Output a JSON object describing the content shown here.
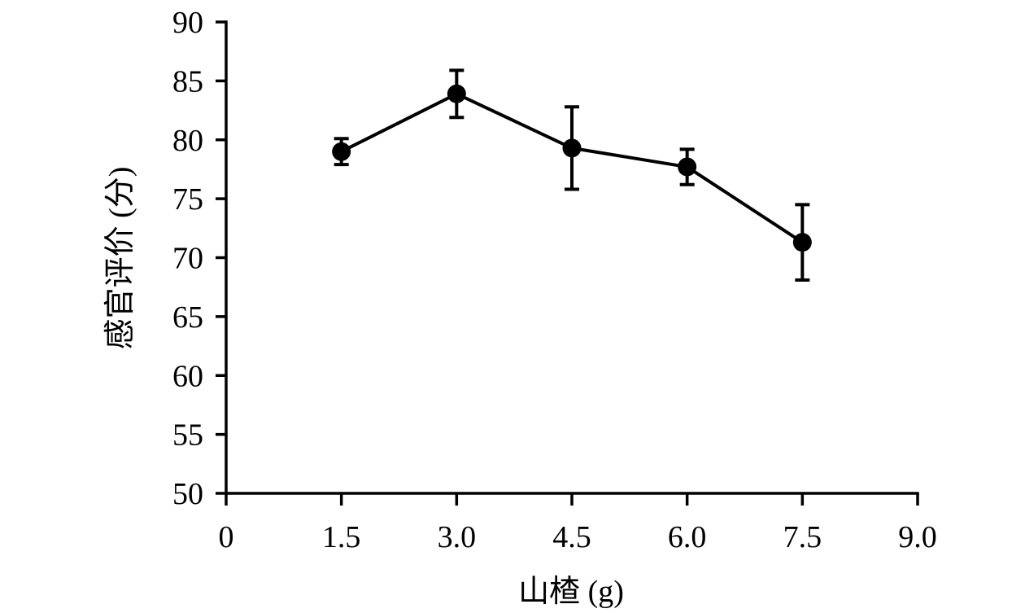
{
  "chart_data": {
    "type": "line",
    "title": "",
    "xlabel": "山楂 (g)",
    "ylabel": "感官评价 (分)",
    "xlim": [
      0,
      9
    ],
    "ylim": [
      50,
      90
    ],
    "x_ticks": [
      0,
      1.5,
      3.0,
      4.5,
      6.0,
      7.5,
      9.0
    ],
    "x_tick_labels": [
      "0",
      "1.5",
      "3.0",
      "4.5",
      "6.0",
      "7.5",
      "9.0"
    ],
    "y_ticks": [
      50,
      55,
      60,
      65,
      70,
      75,
      80,
      85,
      90
    ],
    "y_tick_labels": [
      "50",
      "55",
      "60",
      "65",
      "70",
      "75",
      "80",
      "85",
      "90"
    ],
    "grid": false,
    "legend": "none",
    "series": [
      {
        "x": [
          1.5,
          3.0,
          4.5,
          6.0,
          7.5
        ],
        "y": [
          79.0,
          83.9,
          79.3,
          77.7,
          71.3
        ],
        "error": [
          1.1,
          2.0,
          3.5,
          1.5,
          3.2
        ],
        "color": "#000000",
        "marker": "filled-circle"
      }
    ]
  }
}
